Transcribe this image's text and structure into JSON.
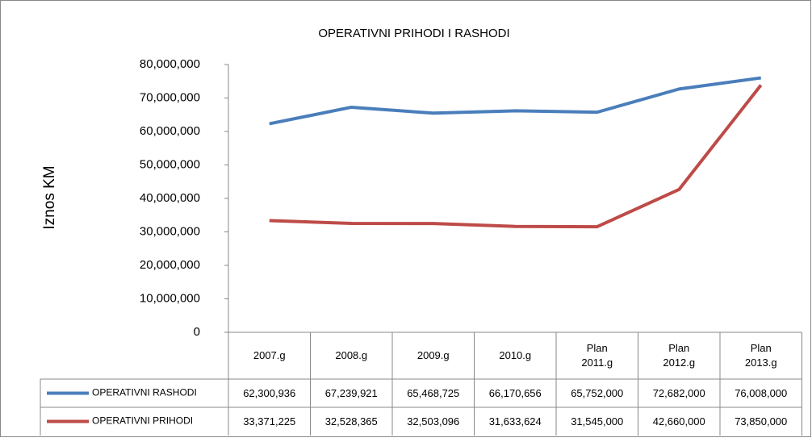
{
  "chart_data": {
    "type": "line",
    "title": "OPERATIVNI PRIHODI I RASHODI",
    "y_label": "Iznos KM",
    "categories": [
      "2007.g",
      "2008.g",
      "2009.g",
      "2010.g",
      "Plan 2011.g",
      "Plan 2012.g",
      "Plan 2013.g"
    ],
    "series": [
      {
        "name": "OPERATIVNI RASHODI",
        "color": "#4a7ebb",
        "values": [
          62300936,
          67239921,
          65468725,
          66170656,
          65752000,
          72682000,
          76008000
        ],
        "value_labels": [
          "62,300,936",
          "67,239,921",
          "65,468,725",
          "66,170,656",
          "65,752,000",
          "72,682,000",
          "76,008,000"
        ]
      },
      {
        "name": "OPERATIVNI PRIHODI",
        "color": "#be4b48",
        "values": [
          33371225,
          32528365,
          32503096,
          31633624,
          31545000,
          42660000,
          73850000
        ],
        "value_labels": [
          "33,371,225",
          "32,528,365",
          "32,503,096",
          "31,633,624",
          "31,545,000",
          "42,660,000",
          "73,850,000"
        ]
      }
    ],
    "ylim": [
      0,
      80000000
    ],
    "yticks": [
      0,
      {
        "value": 10000000,
        "label": "10,000,000"
      },
      {
        "value": 20000000,
        "label": "20,000,000"
      },
      {
        "value": 30000000,
        "label": "30,000,000"
      },
      {
        "value": 40000000,
        "label": "40,000,000"
      },
      {
        "value": 50000000,
        "label": "50,000,000"
      },
      {
        "value": 60000000,
        "label": "60,000,000"
      },
      {
        "value": 70000000,
        "label": "70,000,000"
      },
      {
        "value": 80000000,
        "label": "80,000,000"
      }
    ],
    "grid": false,
    "data_table": true
  }
}
